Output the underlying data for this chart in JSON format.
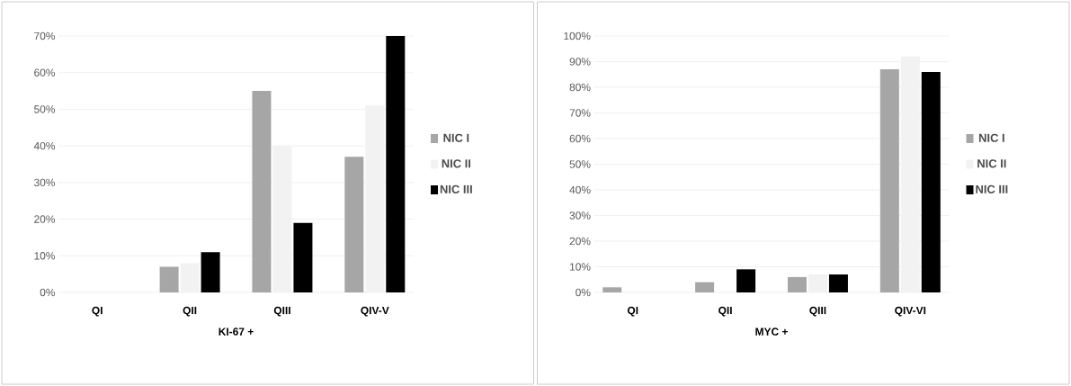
{
  "chart_data": [
    {
      "type": "bar",
      "xlabel": "KI-67 +",
      "categories": [
        "QI",
        "QII",
        "QIII",
        "QIV-V"
      ],
      "series": [
        {
          "name": "NIC I",
          "color": "#a6a6a6",
          "values": [
            0,
            7,
            55,
            37
          ]
        },
        {
          "name": "NIC II",
          "color": "#f2f2f2",
          "values": [
            0,
            8,
            40,
            51
          ]
        },
        {
          "name": "NIC III",
          "color": "#000000",
          "values": [
            0,
            11,
            19,
            70
          ]
        }
      ],
      "ylim": [
        0,
        70
      ],
      "yticks": [
        {
          "value": 0,
          "label": "0%"
        },
        {
          "value": 10,
          "label": "10%"
        },
        {
          "value": 20,
          "label": "20%"
        },
        {
          "value": 30,
          "label": "30%"
        },
        {
          "value": 40,
          "label": "40%"
        },
        {
          "value": 50,
          "label": "50%"
        },
        {
          "value": 60,
          "label": "60%"
        },
        {
          "value": 70,
          "label": "70%"
        }
      ],
      "grid": "y",
      "legend": "right"
    },
    {
      "type": "bar",
      "xlabel": "MYC +",
      "categories": [
        "QI",
        "QII",
        "QIII",
        "QIV-VI"
      ],
      "series": [
        {
          "name": "NIC I",
          "color": "#a6a6a6",
          "values": [
            2,
            4,
            6,
            87
          ]
        },
        {
          "name": "NIC II",
          "color": "#f2f2f2",
          "values": [
            0,
            0,
            7,
            92
          ]
        },
        {
          "name": "NIC III",
          "color": "#000000",
          "values": [
            0,
            9,
            7,
            86
          ]
        }
      ],
      "ylim": [
        0,
        100
      ],
      "yticks": [
        {
          "value": 0,
          "label": "0%"
        },
        {
          "value": 10,
          "label": "10%"
        },
        {
          "value": 20,
          "label": "20%"
        },
        {
          "value": 30,
          "label": "30%"
        },
        {
          "value": 40,
          "label": "40%"
        },
        {
          "value": 50,
          "label": "50%"
        },
        {
          "value": 60,
          "label": "60%"
        },
        {
          "value": 70,
          "label": "70%"
        },
        {
          "value": 80,
          "label": "80%"
        },
        {
          "value": 90,
          "label": "90%"
        },
        {
          "value": 100,
          "label": "100%"
        }
      ],
      "grid": "y",
      "legend": "right"
    }
  ]
}
